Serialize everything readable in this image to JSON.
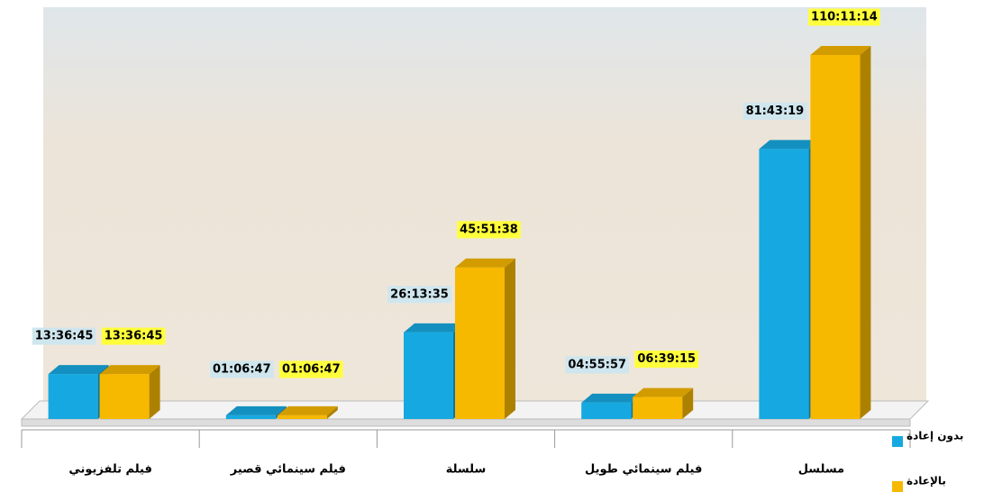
{
  "chart_data": {
    "type": "bar3d",
    "categories": [
      "فيلم تلفزيوني",
      "فيلم سينمائي قصير",
      "سلسلة",
      "فيلم سينمائي طويل",
      "مسلسل"
    ],
    "series": [
      {
        "name": "بدون إعادة",
        "color": "#16a9e1",
        "values": [
          13.6125,
          1.113056,
          26.226389,
          4.9325,
          81.721944
        ],
        "value_labels": [
          "13:36:45",
          "01:06:47",
          "26:13:35",
          "04:55:57",
          "81:43:19"
        ]
      },
      {
        "name": "بالإعادة",
        "color": "#f7b800",
        "values": [
          13.6125,
          1.113056,
          45.860556,
          6.654167,
          110.187222
        ],
        "value_labels": [
          "13:36:45",
          "01:06:47",
          "45:51:38",
          "06:39:15",
          "110:11:14"
        ]
      }
    ],
    "ylim": [
      0,
      120
    ],
    "legend": "right"
  }
}
